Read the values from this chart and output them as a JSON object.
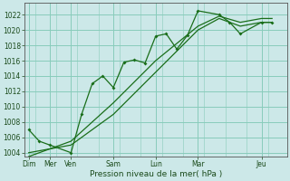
{
  "bg_color": "#cce8e8",
  "grid_color": "#88ccbb",
  "line_color": "#1a6e1a",
  "xlabel": "Pression niveau de la mer( hPa )",
  "ylim": [
    1003.5,
    1023.5
  ],
  "yticks": [
    1004,
    1006,
    1008,
    1010,
    1012,
    1014,
    1016,
    1018,
    1020,
    1022
  ],
  "xtick_positions": [
    0,
    1,
    2,
    4,
    6,
    8,
    11
  ],
  "xtick_labels": [
    "Dim",
    "Mer",
    "Ven",
    "Sam",
    "Lun",
    "Mar",
    "Jeu"
  ],
  "vline_positions": [
    0,
    1,
    2,
    4,
    6,
    8,
    11
  ],
  "xlim": [
    -0.2,
    12.2
  ],
  "series1_x": [
    0,
    0.5,
    1,
    2,
    2.5,
    3,
    3.5,
    4,
    4.5,
    5,
    5.5,
    6,
    6.5,
    7,
    7.5,
    8,
    9,
    9.5,
    10,
    11,
    11.5
  ],
  "series1_y": [
    1007,
    1005.5,
    1005,
    1004,
    1009,
    1013,
    1014,
    1012.5,
    1015.8,
    1016.1,
    1015.7,
    1019.2,
    1019.5,
    1017.5,
    1019.3,
    1022.5,
    1022,
    1021,
    1019.5,
    1021,
    1021
  ],
  "series2_x": [
    0,
    2,
    4,
    6,
    8,
    9,
    10,
    11,
    11.5
  ],
  "series2_y": [
    1004,
    1005,
    1009,
    1014.5,
    1020,
    1021.5,
    1020.5,
    1021,
    1021
  ],
  "series3_x": [
    0,
    2,
    4,
    6,
    8,
    9,
    10,
    11,
    11.5
  ],
  "series3_y": [
    1003.5,
    1005.5,
    1010.5,
    1016,
    1020.5,
    1021.8,
    1021,
    1021.5,
    1021.5
  ]
}
